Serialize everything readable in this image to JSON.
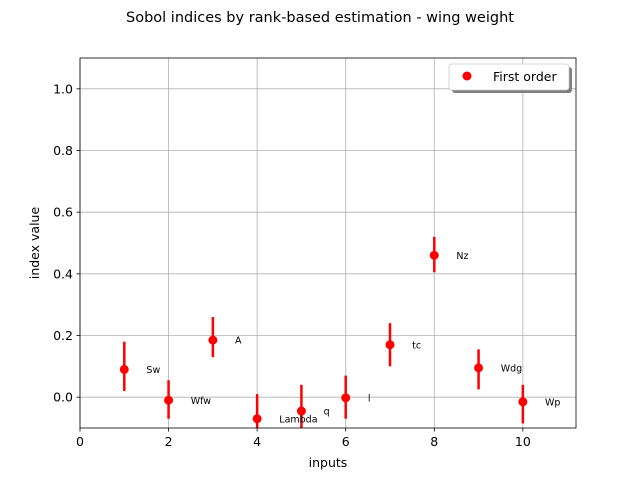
{
  "chart_data": {
    "type": "scatter",
    "title": "Sobol indices by rank-based estimation - wing weight",
    "xlabel": "inputs",
    "ylabel": "index value",
    "xlim": [
      0,
      11.2
    ],
    "ylim": [
      -0.1,
      1.1
    ],
    "xticks": [
      "0",
      "2",
      "4",
      "6",
      "8",
      "10"
    ],
    "xtick_values": [
      0,
      2,
      4,
      6,
      8,
      10
    ],
    "yticks": [
      "0.0",
      "0.2",
      "0.4",
      "0.6",
      "0.8",
      "1.0"
    ],
    "ytick_values": [
      0.0,
      0.2,
      0.4,
      0.6,
      0.8,
      1.0
    ],
    "grid": true,
    "legend_position": "top-right",
    "series": [
      {
        "name": "First order",
        "color": "#ff0000",
        "points": [
          {
            "label": "Sw",
            "x": 1,
            "y": 0.09,
            "lower": 0.02,
            "upper": 0.18
          },
          {
            "label": "Wfw",
            "x": 2,
            "y": -0.01,
            "lower": -0.07,
            "upper": 0.055
          },
          {
            "label": "A",
            "x": 3,
            "y": 0.185,
            "lower": 0.13,
            "upper": 0.26
          },
          {
            "label": "Lambda",
            "x": 4,
            "y": -0.07,
            "lower": -0.14,
            "upper": 0.01
          },
          {
            "label": "q",
            "x": 5,
            "y": -0.045,
            "lower": -0.1,
            "upper": 0.04
          },
          {
            "label": "l",
            "x": 6,
            "y": -0.002,
            "lower": -0.07,
            "upper": 0.07
          },
          {
            "label": "tc",
            "x": 7,
            "y": 0.17,
            "lower": 0.1,
            "upper": 0.24
          },
          {
            "label": "Nz",
            "x": 8,
            "y": 0.46,
            "lower": 0.405,
            "upper": 0.52
          },
          {
            "label": "Wdg",
            "x": 9,
            "y": 0.095,
            "lower": 0.025,
            "upper": 0.155
          },
          {
            "label": "Wp",
            "x": 10,
            "y": -0.015,
            "lower": -0.085,
            "upper": 0.04
          }
        ]
      }
    ]
  }
}
